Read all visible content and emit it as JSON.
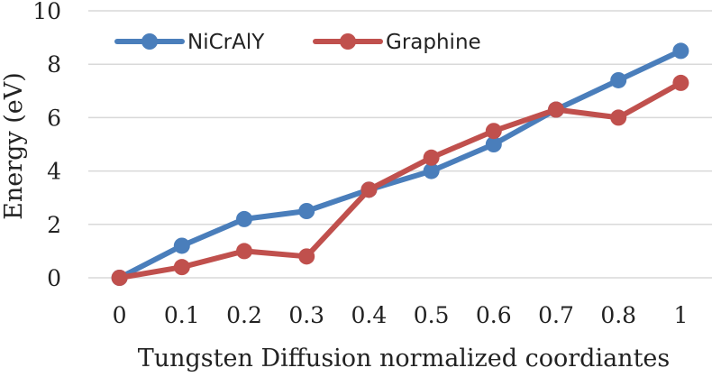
{
  "chart_data": {
    "type": "line",
    "title": "",
    "xlabel": "Tungsten Diffusion normalized coordiantes",
    "ylabel": "Energy (eV)",
    "categories": [
      "0",
      "0.1",
      "0.2",
      "0.3",
      "0.4",
      "0.5",
      "0.6",
      "0.7",
      "0.8",
      "1"
    ],
    "ylim": [
      0,
      10
    ],
    "yticks": [
      "0",
      "2",
      "4",
      "6",
      "8",
      "10"
    ],
    "grid": true,
    "legend_position": "top-left",
    "series": [
      {
        "name": "NiCrAlY",
        "color": "#4a7ebb",
        "values": [
          0,
          1.2,
          2.2,
          2.5,
          3.3,
          4.0,
          5.0,
          6.3,
          7.4,
          8.5
        ]
      },
      {
        "name": "Graphine",
        "color": "#c0504d",
        "values": [
          0,
          0.4,
          1.0,
          0.8,
          3.3,
          4.5,
          5.5,
          6.3,
          6.0,
          7.3
        ]
      }
    ]
  }
}
